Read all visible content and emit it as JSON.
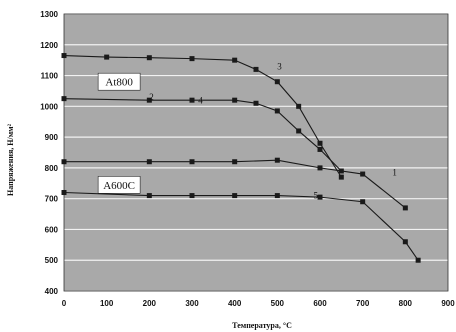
{
  "chart_data": {
    "type": "line",
    "xlabel": "Температура, °C",
    "ylabel": "Напряжения, Н/мм²",
    "xlim": [
      0,
      900
    ],
    "ylim": [
      400,
      1300
    ],
    "xticks": [
      0,
      100,
      200,
      300,
      400,
      500,
      600,
      700,
      800,
      900
    ],
    "yticks": [
      400,
      500,
      600,
      700,
      800,
      900,
      1000,
      1100,
      1200,
      1300
    ],
    "grid": true,
    "colors": {
      "plot_bg": "#a9a9a9",
      "grid": "#f2f2f2",
      "line": "#1a1a1a"
    },
    "labels": [
      {
        "text": "At800",
        "x": 80,
        "y": 1080
      },
      {
        "text": "A600C",
        "x": 80,
        "y": 745
      }
    ],
    "curve_numbers": [
      {
        "text": "1",
        "x": 775,
        "y": 775
      },
      {
        "text": "2",
        "x": 205,
        "y": 1020
      },
      {
        "text": "3",
        "x": 505,
        "y": 1120
      },
      {
        "text": "4",
        "x": 320,
        "y": 1010
      },
      {
        "text": "5",
        "x": 590,
        "y": 700
      }
    ],
    "series": [
      {
        "values": [
          [
            0,
            1165
          ],
          [
            100,
            1160
          ],
          [
            200,
            1158
          ],
          [
            300,
            1155
          ],
          [
            400,
            1150
          ],
          [
            450,
            1120
          ],
          [
            500,
            1080
          ],
          [
            550,
            1000
          ],
          [
            600,
            880
          ],
          [
            650,
            770
          ]
        ]
      },
      {
        "values": [
          [
            0,
            1025
          ],
          [
            200,
            1020
          ],
          [
            300,
            1020
          ],
          [
            400,
            1020
          ],
          [
            450,
            1010
          ],
          [
            500,
            985
          ],
          [
            550,
            920
          ],
          [
            600,
            860
          ],
          [
            650,
            790
          ]
        ]
      },
      {
        "values": [
          [
            0,
            820
          ],
          [
            200,
            820
          ],
          [
            300,
            820
          ],
          [
            400,
            820
          ],
          [
            500,
            825
          ],
          [
            600,
            800
          ],
          [
            700,
            780
          ],
          [
            800,
            670
          ]
        ]
      },
      {
        "values": [
          [
            0,
            720
          ],
          [
            200,
            710
          ],
          [
            300,
            710
          ],
          [
            400,
            710
          ],
          [
            500,
            710
          ],
          [
            600,
            705
          ],
          [
            700,
            690
          ],
          [
            800,
            560
          ],
          [
            830,
            500
          ]
        ]
      }
    ]
  }
}
